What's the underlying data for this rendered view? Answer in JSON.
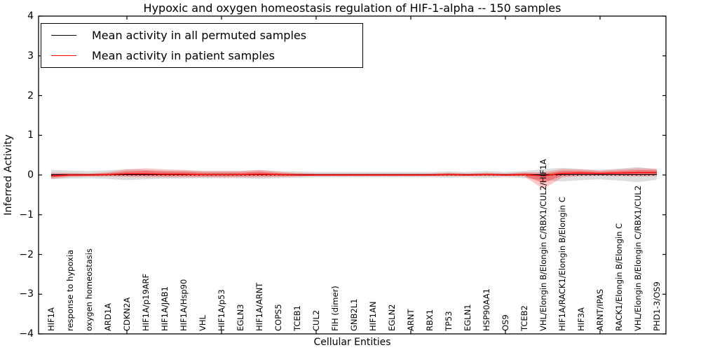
{
  "figure": {
    "title": "Hypoxic and oxygen homeostasis regulation of HIF-1-alpha -- 150 samples",
    "xlabel": "Cellular Entities",
    "ylabel": "Inferred Activity"
  },
  "legend": {
    "items": [
      {
        "label": "Mean activity in all permuted samples",
        "color": "#000000"
      },
      {
        "label": "Mean activity in patient samples",
        "color": "#ff0000"
      }
    ]
  },
  "chart_data": {
    "type": "line",
    "title": "Hypoxic and oxygen homeostasis regulation of HIF-1-alpha -- 150 samples",
    "xlabel": "Cellular Entities",
    "ylabel": "Inferred Activity",
    "ylim": [
      -4,
      4
    ],
    "ytick_labels": [
      "4",
      "3",
      "2",
      "1",
      "0",
      "−1",
      "−2",
      "−3",
      "−4"
    ],
    "x_tick_rotation": 90,
    "grid": false,
    "legend_position": "upper left",
    "entities": [
      "HIF1A",
      "response to hypoxia",
      "oxygen homeostasis",
      "ARD1A",
      "CDKN2A",
      "HIF1A/p19ARF",
      "HIF1A/JAB1",
      "HIF1A/Hsp90",
      "VHL",
      "HIF1A/p53",
      "EGLN3",
      "HIF1A/ARNT",
      "COPS5",
      "TCEB1",
      "CUL2",
      "FIH (dimer)",
      "GNB2L1",
      "HIF1AN",
      "EGLN2",
      "ARNT",
      "RBX1",
      "TP53",
      "EGLN1",
      "HSP90AA1",
      "OS9",
      "TCEB2",
      "VHL/Elongin B/Elongin C/RBX1/CUL2/HIF1A",
      "HIF1A/RACK1/Elongin B/Elongin C",
      "HIF3A",
      "ARNT/IPAS",
      "RACK1/Elongin B/Elongin C",
      "VHL/Elongin B/Elongin C/RBX1/CUL2",
      "PHD1-3/OS9"
    ],
    "series": [
      {
        "name": "Mean activity in all permuted samples",
        "color": "#000000",
        "band_color": "rgba(0,0,0,0.13)",
        "mean": [
          0.01,
          0.01,
          0.01,
          0.01,
          0.01,
          0.01,
          0.01,
          0.01,
          0.01,
          0.01,
          0.01,
          0.01,
          0.01,
          0.01,
          0.01,
          0.01,
          0.01,
          0.01,
          0.01,
          0.01,
          0.01,
          0.01,
          0.01,
          0.01,
          0.01,
          0.01,
          0.01,
          0.01,
          0.01,
          0.01,
          0.01,
          0.01,
          0.01
        ],
        "std": [
          0.12,
          0.1,
          0.09,
          0.11,
          0.14,
          0.12,
          0.1,
          0.1,
          0.09,
          0.09,
          0.09,
          0.11,
          0.09,
          0.08,
          0.07,
          0.07,
          0.07,
          0.07,
          0.07,
          0.07,
          0.07,
          0.08,
          0.07,
          0.09,
          0.07,
          0.09,
          0.14,
          0.17,
          0.14,
          0.12,
          0.15,
          0.19,
          0.13
        ]
      },
      {
        "name": "Mean activity in patient samples",
        "color": "#ff0000",
        "band_color": "rgba(255,0,0,0.22)",
        "inner_band_color": "rgba(255,0,0,0.33)",
        "mean": [
          -0.02,
          0.0,
          0.0,
          0.01,
          0.03,
          0.03,
          0.02,
          0.02,
          0.01,
          0.01,
          0.01,
          0.02,
          0.01,
          0.0,
          0.0,
          0.0,
          0.0,
          0.0,
          0.0,
          0.0,
          0.0,
          0.01,
          0.0,
          0.01,
          0.0,
          0.01,
          -0.02,
          0.04,
          0.05,
          0.04,
          0.05,
          0.06,
          0.06
        ],
        "std_upper": [
          0.08,
          0.05,
          0.04,
          0.06,
          0.11,
          0.14,
          0.12,
          0.11,
          0.09,
          0.09,
          0.09,
          0.11,
          0.07,
          0.05,
          0.04,
          0.04,
          0.04,
          0.04,
          0.04,
          0.04,
          0.04,
          0.05,
          0.04,
          0.05,
          0.04,
          0.06,
          0.09,
          0.11,
          0.09,
          0.07,
          0.09,
          0.11,
          0.1
        ],
        "std_lower": [
          0.08,
          0.05,
          0.04,
          0.05,
          0.08,
          0.09,
          0.08,
          0.08,
          0.07,
          0.07,
          0.07,
          0.08,
          0.06,
          0.04,
          0.03,
          0.03,
          0.03,
          0.03,
          0.03,
          0.03,
          0.03,
          0.04,
          0.03,
          0.04,
          0.03,
          0.05,
          0.33,
          0.1,
          0.08,
          0.06,
          0.08,
          0.1,
          0.09
        ]
      }
    ],
    "zero_line": {
      "y": 0,
      "style": "dotted",
      "color": "#000000"
    },
    "secondary_tick_entity_positions": [
      5,
      10,
      15,
      20,
      25,
      30
    ]
  }
}
